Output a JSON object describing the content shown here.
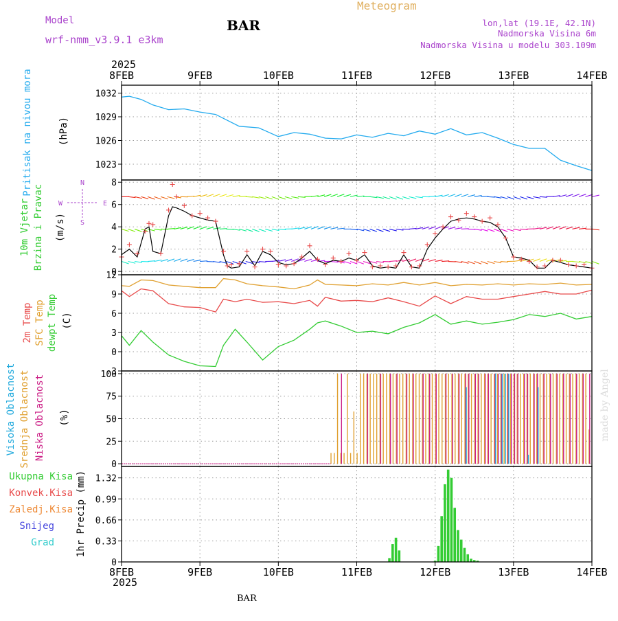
{
  "header": {
    "model_label": "Model",
    "model_name": "wrf-nmm_v3.9.1  e3km",
    "station": "BAR",
    "product": "Meteogram",
    "lonlat": "lon,lat (19.1E, 42.1N)",
    "elevation": "Nadmorska Visina 6m",
    "model_elevation": "Nadmorska Visina u modelu 303.109m",
    "footer_station": "BAR",
    "credit": "made by Angel"
  },
  "colors": {
    "pressure": "#22aaee",
    "temp2m": "#e84a4a",
    "sfc": "#e0a030",
    "dewpt": "#33cc33",
    "high_cloud": "#22aadd",
    "mid_cloud": "#e0a030",
    "low_cloud": "#cc2288",
    "total_precip": "#33cc33",
    "conv_precip": "#e84a4a",
    "frozen": "#ee8833",
    "snow": "#4444dd",
    "graupel": "#33cccc",
    "wind_label": "#aa44cc",
    "model_label": "#aa44cc",
    "product": "#e0b060"
  },
  "time_axis": {
    "year": "2025",
    "labels": [
      "8FEB",
      "9FEB",
      "10FEB",
      "11FEB",
      "12FEB",
      "13FEB",
      "14FEB"
    ]
  },
  "panel_labels": {
    "pressure": [
      "Pritisak na nivou mora",
      "(hPa)"
    ],
    "wind": [
      "10m Vjetar",
      "Brzina i Pravac",
      "(m/s)"
    ],
    "compass": {
      "n": "N",
      "s": "S",
      "e": "E",
      "w": "W"
    },
    "temp": [
      "2m Temp",
      "SFC Temp",
      "dewpt Temp",
      "(C)"
    ],
    "cloud": [
      "Visoka Oblacnost",
      "Srednja Oblacnost",
      "Niska Oblacnost",
      "(%)"
    ],
    "precip": {
      "legend": [
        "Ukupna Kisa",
        "Konvek.Kisa",
        "Zaledj.Kisa",
        "Snijeg",
        "Grad"
      ],
      "ylabel": "1hr Precip (mm)"
    }
  },
  "chart_data": [
    {
      "id": "pressure",
      "type": "line",
      "title": "Pritisak na nivou mora",
      "ylabel": "(hPa)",
      "ylim": [
        1021,
        1033
      ],
      "yticks": [
        1023,
        1026,
        1029,
        1032
      ],
      "x_days": [
        0,
        0.1,
        0.25,
        0.4,
        0.6,
        0.8,
        1.0,
        1.2,
        1.5,
        1.75,
        2.0,
        2.2,
        2.4,
        2.6,
        2.8,
        3.0,
        3.2,
        3.4,
        3.6,
        3.8,
        4.0,
        4.2,
        4.4,
        4.6,
        4.8,
        5.0,
        5.2,
        5.4,
        5.6,
        5.8,
        6.0
      ],
      "series": [
        {
          "name": "pressure",
          "values": [
            1031.5,
            1031.6,
            1031.2,
            1030.5,
            1029.9,
            1030.0,
            1029.6,
            1029.3,
            1027.8,
            1027.6,
            1026.5,
            1027.0,
            1026.8,
            1026.3,
            1026.2,
            1026.7,
            1026.4,
            1026.9,
            1026.6,
            1027.2,
            1026.8,
            1027.5,
            1026.7,
            1027.0,
            1026.3,
            1025.5,
            1025.0,
            1025.0,
            1023.5,
            1022.8,
            1022.2
          ]
        }
      ]
    },
    {
      "id": "wind",
      "type": "line",
      "title": "10m Vjetar Brzina i Pravac",
      "ylabel": "(m/s)",
      "ylim": [
        -0.3,
        8.2
      ],
      "yticks": [
        0,
        2,
        4,
        6,
        8
      ],
      "x_days": [
        0,
        0.1,
        0.2,
        0.3,
        0.35,
        0.4,
        0.5,
        0.6,
        0.65,
        0.7,
        0.8,
        0.9,
        1.0,
        1.1,
        1.2,
        1.3,
        1.35,
        1.4,
        1.5,
        1.6,
        1.7,
        1.8,
        1.9,
        2.0,
        2.1,
        2.2,
        2.3,
        2.4,
        2.5,
        2.6,
        2.7,
        2.8,
        2.9,
        3.0,
        3.1,
        3.2,
        3.3,
        3.4,
        3.5,
        3.6,
        3.7,
        3.8,
        3.9,
        4.0,
        4.1,
        4.2,
        4.3,
        4.4,
        4.5,
        4.6,
        4.7,
        4.8,
        4.9,
        5.0,
        5.1,
        5.2,
        5.3,
        5.4,
        5.5,
        5.6,
        5.7,
        5.8,
        5.9,
        6.0
      ],
      "series": [
        {
          "name": "speed",
          "values": [
            1.5,
            2.0,
            1.3,
            3.8,
            4.0,
            1.8,
            1.6,
            5.0,
            5.8,
            5.7,
            5.4,
            5.0,
            4.8,
            4.6,
            4.5,
            1.5,
            0.5,
            0.3,
            0.4,
            1.5,
            0.5,
            1.8,
            1.5,
            0.8,
            0.6,
            0.7,
            1.2,
            1.8,
            1.0,
            0.7,
            1.0,
            0.9,
            1.2,
            1.0,
            1.5,
            0.5,
            0.3,
            0.4,
            0.3,
            1.5,
            0.4,
            0.3,
            2.0,
            3.0,
            3.8,
            4.5,
            4.7,
            4.8,
            4.7,
            4.5,
            4.4,
            4.0,
            3.0,
            1.3,
            1.2,
            1.0,
            0.3,
            0.3,
            1.0,
            0.8,
            0.6,
            0.5,
            0.4,
            0.3
          ]
        },
        {
          "name": "gust",
          "values": [
            1.3,
            2.4,
            1.6,
            3.6,
            4.3,
            4.2,
            1.6,
            5.5,
            7.8,
            6.7,
            5.9,
            5.0,
            5.2,
            4.8,
            4.5,
            1.8,
            0.5,
            0.6,
            0.7,
            1.8,
            0.4,
            2.0,
            1.8,
            0.6,
            0.5,
            0.7,
            1.3,
            2.3,
            1.1,
            0.6,
            1.2,
            0.9,
            1.6,
            1.0,
            1.7,
            0.4,
            0.5,
            0.4,
            0.5,
            1.7,
            0.4,
            0.5,
            2.4,
            3.4,
            4.0,
            4.9,
            4.6,
            5.2,
            4.9,
            4.5,
            4.8,
            4.2,
            3.0,
            1.3,
            1.1,
            0.9,
            0.4,
            0.5,
            1.0,
            1.0,
            0.6,
            0.5,
            0.6,
            0.3
          ]
        }
      ],
      "direction_bands": [
        6.7,
        3.8,
        0.9
      ]
    },
    {
      "id": "temperature",
      "type": "line",
      "title": "2m Temp / SFC Temp / dewpt Temp",
      "ylabel": "(C)",
      "ylim": [
        -3,
        12
      ],
      "yticks": [
        -3,
        0,
        3,
        6,
        9,
        12
      ],
      "x_days": [
        0,
        0.1,
        0.25,
        0.4,
        0.6,
        0.8,
        1.0,
        1.2,
        1.3,
        1.45,
        1.6,
        1.8,
        2.0,
        2.2,
        2.4,
        2.5,
        2.6,
        2.8,
        3.0,
        3.2,
        3.4,
        3.6,
        3.8,
        4.0,
        4.2,
        4.4,
        4.6,
        4.8,
        5.0,
        5.2,
        5.4,
        5.6,
        5.8,
        6.0
      ],
      "series": [
        {
          "name": "2m Temp",
          "values": [
            9.5,
            8.6,
            9.8,
            9.5,
            7.5,
            7.0,
            6.9,
            6.2,
            8.2,
            7.8,
            8.2,
            7.7,
            7.8,
            7.5,
            8.0,
            7.1,
            8.5,
            7.9,
            8.0,
            7.8,
            8.4,
            7.8,
            7.1,
            8.7,
            7.5,
            8.6,
            8.2,
            8.2,
            8.6,
            9.0,
            9.4,
            9.0,
            9.0,
            9.6
          ]
        },
        {
          "name": "SFC Temp",
          "values": [
            10.3,
            10.2,
            11.2,
            11.1,
            10.4,
            10.2,
            10.0,
            10.0,
            11.4,
            11.2,
            10.6,
            10.3,
            10.1,
            9.8,
            10.4,
            11.2,
            10.5,
            10.4,
            10.3,
            10.6,
            10.4,
            10.8,
            10.4,
            10.8,
            10.3,
            10.5,
            10.4,
            10.6,
            10.4,
            10.6,
            10.5,
            10.7,
            10.4,
            10.5
          ]
        },
        {
          "name": "dewpt Temp",
          "values": [
            2.5,
            1.0,
            3.3,
            1.5,
            -0.5,
            -1.5,
            -2.2,
            -2.3,
            1.0,
            3.5,
            1.5,
            -1.3,
            0.8,
            1.8,
            3.5,
            4.5,
            4.8,
            4.0,
            3.0,
            3.2,
            2.8,
            3.8,
            4.5,
            5.8,
            4.3,
            4.8,
            4.3,
            4.6,
            5.0,
            5.8,
            5.5,
            6.0,
            5.1,
            5.5
          ]
        }
      ]
    },
    {
      "id": "cloud",
      "type": "bar",
      "title": "Visoka / Srednja / Niska Oblacnost",
      "ylabel": "(%)",
      "ylim": [
        -3,
        103
      ],
      "yticks": [
        0,
        25,
        50,
        75,
        100
      ],
      "hours": [
        64,
        65,
        66,
        67,
        68,
        69,
        70,
        71,
        72,
        73,
        74,
        75,
        76,
        77,
        78,
        79,
        80,
        81,
        82,
        83,
        84,
        85,
        86,
        87,
        88,
        89,
        90,
        91,
        92,
        93,
        94,
        95,
        96,
        97,
        98,
        99,
        100,
        101,
        102,
        103,
        104,
        105,
        106,
        107,
        108,
        109,
        110,
        111,
        112,
        113,
        114,
        115,
        116,
        117,
        118,
        119,
        120,
        121,
        122,
        123,
        124,
        125,
        126,
        127,
        128,
        129,
        130,
        131,
        132,
        133,
        134,
        135,
        136,
        137,
        138,
        139,
        140,
        141,
        142,
        143
      ],
      "series": [
        {
          "name": "Srednja Oblacnost",
          "values": [
            12,
            12,
            100,
            12,
            12,
            100,
            12,
            58,
            12,
            100,
            100,
            100,
            100,
            100,
            100,
            100,
            100,
            100,
            100,
            100,
            100,
            100,
            100,
            100,
            100,
            100,
            100,
            100,
            100,
            100,
            100,
            100,
            100,
            100,
            100,
            100,
            100,
            100,
            100,
            100,
            100,
            100,
            100,
            100,
            100,
            100,
            100,
            100,
            100,
            100,
            100,
            100,
            100,
            100,
            100,
            100,
            100,
            100,
            100,
            100,
            100,
            100,
            100,
            100,
            100,
            100,
            100,
            100,
            100,
            100,
            100,
            100,
            100,
            100,
            100,
            100,
            100,
            100,
            100,
            38
          ]
        },
        {
          "name": "Niska Oblacnost",
          "values": [
            0,
            0,
            0,
            100,
            0,
            0,
            0,
            0,
            0,
            0,
            0,
            100,
            0,
            0,
            0,
            100,
            0,
            0,
            100,
            0,
            100,
            0,
            0,
            100,
            0,
            100,
            0,
            0,
            100,
            0,
            100,
            0,
            100,
            0,
            0,
            100,
            0,
            100,
            0,
            100,
            0,
            100,
            100,
            0,
            100,
            100,
            0,
            100,
            100,
            0,
            100,
            100,
            100,
            0,
            100,
            100,
            100,
            100,
            0,
            100,
            100,
            0,
            100,
            100,
            0,
            100,
            0,
            100,
            0,
            100,
            0,
            100,
            0,
            100,
            0,
            100,
            0,
            100,
            0,
            100
          ]
        },
        {
          "name": "Visoka Oblacnost",
          "values": [
            0,
            0,
            0,
            0,
            0,
            0,
            0,
            0,
            0,
            0,
            0,
            0,
            0,
            0,
            0,
            0,
            0,
            0,
            0,
            0,
            0,
            0,
            0,
            0,
            0,
            0,
            0,
            0,
            0,
            0,
            0,
            0,
            0,
            0,
            0,
            0,
            0,
            0,
            0,
            0,
            0,
            85,
            0,
            0,
            0,
            0,
            0,
            0,
            0,
            0,
            100,
            0,
            100,
            100,
            100,
            0,
            0,
            0,
            0,
            0,
            10,
            0,
            0,
            85,
            0,
            0,
            0,
            0,
            0,
            0,
            0,
            0,
            0,
            0,
            0,
            0,
            0,
            0,
            0,
            0
          ]
        }
      ]
    },
    {
      "id": "precip",
      "type": "bar",
      "title": "1hr Precip",
      "ylabel": "(mm)",
      "ylim": [
        0,
        1.5
      ],
      "yticks": [
        0,
        0.33,
        0.66,
        0.99,
        1.32
      ],
      "hours": [
        82,
        83,
        84,
        85,
        96,
        97,
        98,
        99,
        100,
        101,
        102,
        103,
        104,
        105,
        106,
        107,
        108,
        109
      ],
      "series": [
        {
          "name": "Ukupna Kisa",
          "values": [
            0.06,
            0.28,
            0.38,
            0.18,
            0.02,
            0.25,
            0.72,
            1.22,
            1.45,
            1.32,
            0.85,
            0.5,
            0.35,
            0.22,
            0.12,
            0.05,
            0.03,
            0.02
          ]
        }
      ]
    }
  ]
}
